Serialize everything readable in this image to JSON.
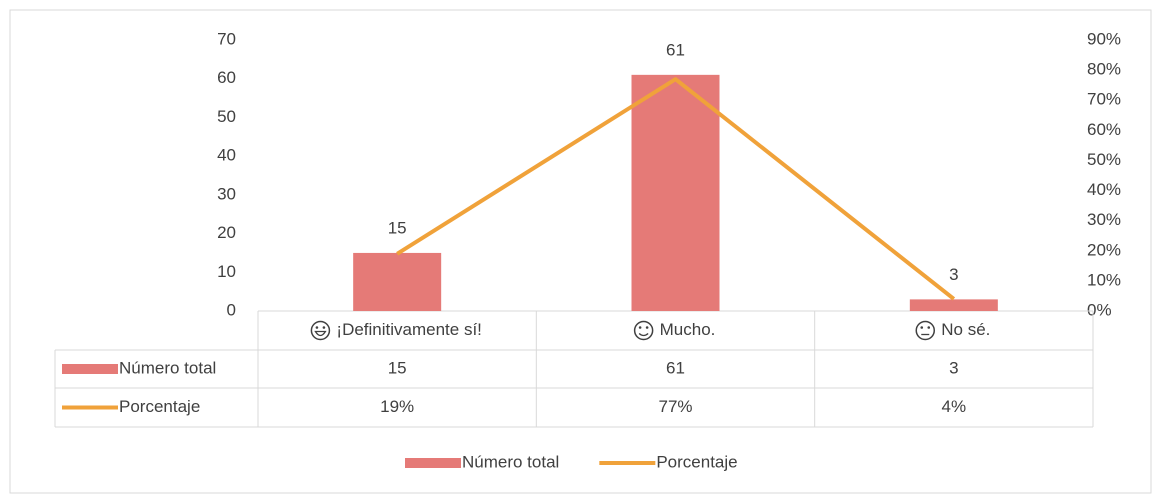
{
  "chart_data": {
    "type": "bar",
    "categories": [
      "¡Definitivamente sí!",
      "Mucho.",
      "No sé."
    ],
    "series": [
      {
        "name": "Número total",
        "type": "bar",
        "color": "#e57a77",
        "values": [
          15,
          61,
          3
        ]
      },
      {
        "name": "Porcentaje",
        "type": "line",
        "axis": "y2",
        "color": "#f0a23a",
        "values": [
          19,
          77,
          4
        ],
        "value_labels": [
          "19%",
          "77%",
          "4%"
        ]
      }
    ],
    "ylim": [
      0,
      70
    ],
    "yticks": [
      0,
      10,
      20,
      30,
      40,
      50,
      60,
      70
    ],
    "y2lim": [
      0,
      90
    ],
    "y2ticks": [
      {
        "value": 0,
        "label": "0%"
      },
      {
        "value": 10,
        "label": "10%"
      },
      {
        "value": 20,
        "label": "20%"
      },
      {
        "value": 30,
        "label": "30%"
      },
      {
        "value": 40,
        "label": "40%"
      },
      {
        "value": 50,
        "label": "50%"
      },
      {
        "value": 60,
        "label": "60%"
      },
      {
        "value": 70,
        "label": "70%"
      },
      {
        "value": 80,
        "label": "80%"
      },
      {
        "value": 90,
        "label": "90%"
      }
    ],
    "grid": false,
    "legend": "bottom",
    "data_table": true
  }
}
